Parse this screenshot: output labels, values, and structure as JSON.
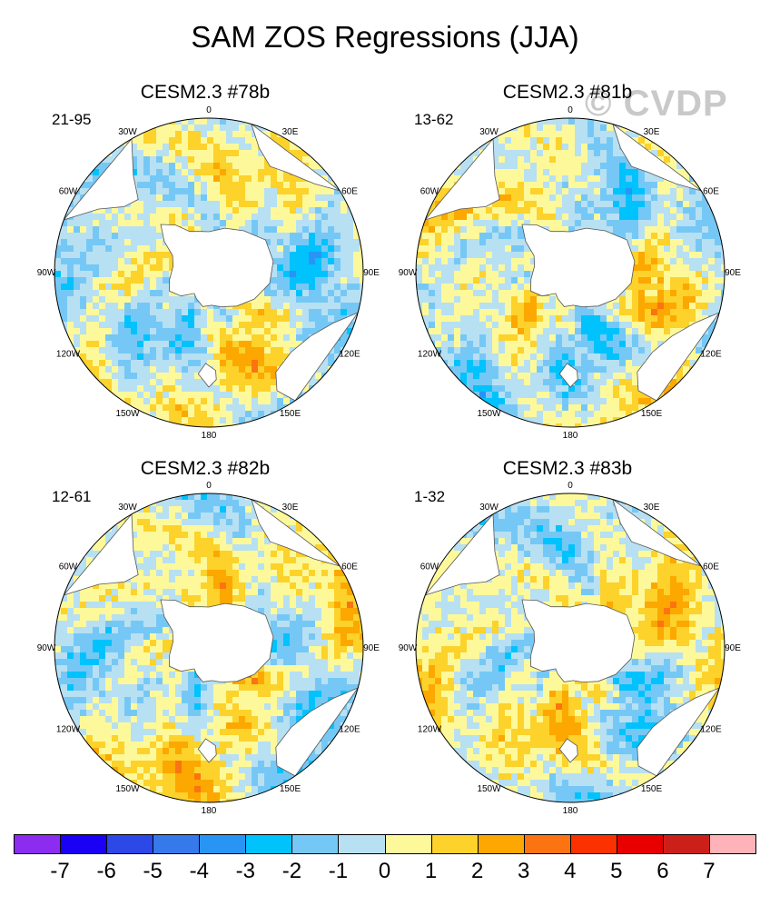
{
  "title": "SAM ZOS Regressions (JJA)",
  "watermark": "© CVDP",
  "colors": {
    "land": "#ffffff",
    "coast": "#555555",
    "outline": "#000000"
  },
  "panels": [
    {
      "title": "CESM2.3 #78b",
      "years": "21-95",
      "seed": 11,
      "bias": -0.15
    },
    {
      "title": "CESM2.3 #81b",
      "years": "13-62",
      "seed": 23,
      "bias": -0.05
    },
    {
      "title": "CESM2.3 #82b",
      "years": "12-61",
      "seed": 37,
      "bias": 0.1
    },
    {
      "title": "CESM2.3 #83b",
      "years": "1-32",
      "seed": 53,
      "bias": 0.12
    }
  ],
  "lon_labels": [
    "0",
    "30E",
    "60E",
    "90E",
    "120E",
    "150E",
    "180",
    "150W",
    "120W",
    "90W",
    "60W",
    "30W"
  ],
  "chart_data": {
    "type": "heatmap",
    "projection": "south polar stereographic",
    "variable": "ZOS regression on SAM index",
    "season": "JJA",
    "levels": [
      -7,
      -6,
      -5,
      -4,
      -3,
      -2,
      -1,
      0,
      1,
      2,
      3,
      4,
      5,
      6,
      7
    ],
    "level_labels": [
      "-7",
      "-6",
      "-5",
      "-4",
      "-3",
      "-2",
      "-1",
      "0",
      "1",
      "2",
      "3",
      "4",
      "5",
      "6",
      "7"
    ],
    "colors": [
      "#8b2cf0",
      "#1a00f5",
      "#2c48e6",
      "#3679ea",
      "#2895f5",
      "#00c2fc",
      "#75c8f5",
      "#b7e0f3",
      "#fdf99a",
      "#fcd22b",
      "#fca800",
      "#fb7411",
      "#fb3100",
      "#e80000",
      "#cc1f1a",
      "#fdb3b8"
    ]
  }
}
